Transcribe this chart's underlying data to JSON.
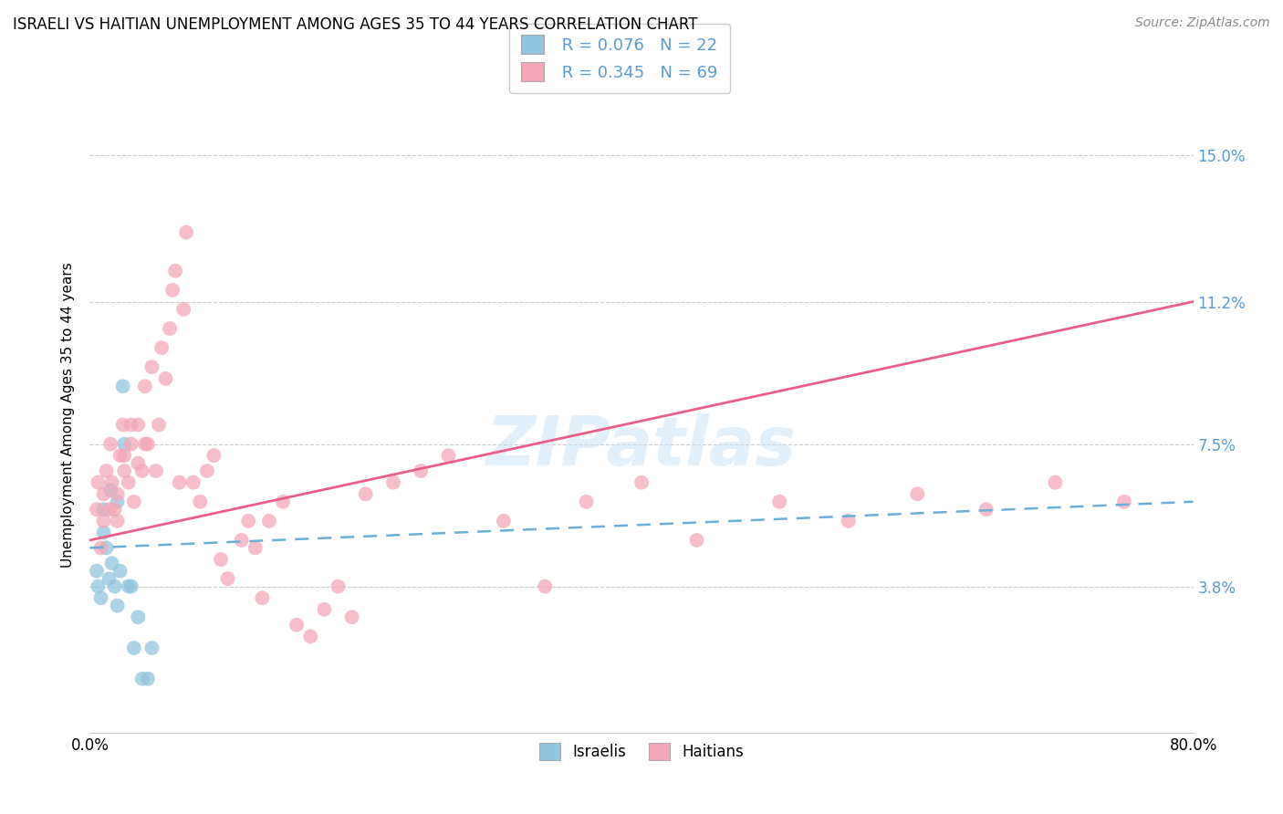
{
  "title": "ISRAELI VS HAITIAN UNEMPLOYMENT AMONG AGES 35 TO 44 YEARS CORRELATION CHART",
  "source": "Source: ZipAtlas.com",
  "ylabel": "Unemployment Among Ages 35 to 44 years",
  "xlim": [
    0.0,
    0.8
  ],
  "ylim": [
    0.0,
    0.165
  ],
  "ytick_positions": [
    0.038,
    0.075,
    0.112,
    0.15
  ],
  "ytick_labels": [
    "3.8%",
    "7.5%",
    "11.2%",
    "15.0%"
  ],
  "legend_israeli_r": "R = 0.076",
  "legend_israeli_n": "N = 22",
  "legend_haitian_r": "R = 0.345",
  "legend_haitian_n": "N = 69",
  "israeli_color": "#92c5de",
  "haitian_color": "#f4a7b9",
  "israeli_line_color": "#6baed6",
  "haitian_line_color": "#e8608a",
  "israeli_x": [
    0.005,
    0.006,
    0.008,
    0.01,
    0.01,
    0.012,
    0.014,
    0.015,
    0.016,
    0.018,
    0.02,
    0.02,
    0.022,
    0.024,
    0.025,
    0.028,
    0.03,
    0.032,
    0.035,
    0.038,
    0.042,
    0.045
  ],
  "israeli_y": [
    0.042,
    0.038,
    0.035,
    0.058,
    0.052,
    0.048,
    0.04,
    0.063,
    0.044,
    0.038,
    0.033,
    0.06,
    0.042,
    0.09,
    0.075,
    0.038,
    0.038,
    0.022,
    0.03,
    0.014,
    0.014,
    0.022
  ],
  "haitian_x": [
    0.005,
    0.006,
    0.008,
    0.01,
    0.01,
    0.012,
    0.014,
    0.015,
    0.016,
    0.018,
    0.02,
    0.02,
    0.022,
    0.024,
    0.025,
    0.025,
    0.028,
    0.03,
    0.03,
    0.032,
    0.035,
    0.035,
    0.038,
    0.04,
    0.04,
    0.042,
    0.045,
    0.048,
    0.05,
    0.052,
    0.055,
    0.058,
    0.06,
    0.062,
    0.065,
    0.068,
    0.07,
    0.075,
    0.08,
    0.085,
    0.09,
    0.095,
    0.1,
    0.11,
    0.115,
    0.12,
    0.125,
    0.13,
    0.14,
    0.15,
    0.16,
    0.17,
    0.18,
    0.19,
    0.2,
    0.22,
    0.24,
    0.26,
    0.3,
    0.33,
    0.36,
    0.4,
    0.44,
    0.5,
    0.55,
    0.6,
    0.65,
    0.7,
    0.75
  ],
  "haitian_y": [
    0.058,
    0.065,
    0.048,
    0.055,
    0.062,
    0.068,
    0.058,
    0.075,
    0.065,
    0.058,
    0.062,
    0.055,
    0.072,
    0.08,
    0.068,
    0.072,
    0.065,
    0.075,
    0.08,
    0.06,
    0.07,
    0.08,
    0.068,
    0.075,
    0.09,
    0.075,
    0.095,
    0.068,
    0.08,
    0.1,
    0.092,
    0.105,
    0.115,
    0.12,
    0.065,
    0.11,
    0.13,
    0.065,
    0.06,
    0.068,
    0.072,
    0.045,
    0.04,
    0.05,
    0.055,
    0.048,
    0.035,
    0.055,
    0.06,
    0.028,
    0.025,
    0.032,
    0.038,
    0.03,
    0.062,
    0.065,
    0.068,
    0.072,
    0.055,
    0.038,
    0.06,
    0.065,
    0.05,
    0.06,
    0.055,
    0.062,
    0.058,
    0.065,
    0.06
  ],
  "israeli_trend_start_y": 0.048,
  "israeli_trend_end_y": 0.06,
  "haitian_trend_start_y": 0.05,
  "haitian_trend_end_y": 0.112
}
